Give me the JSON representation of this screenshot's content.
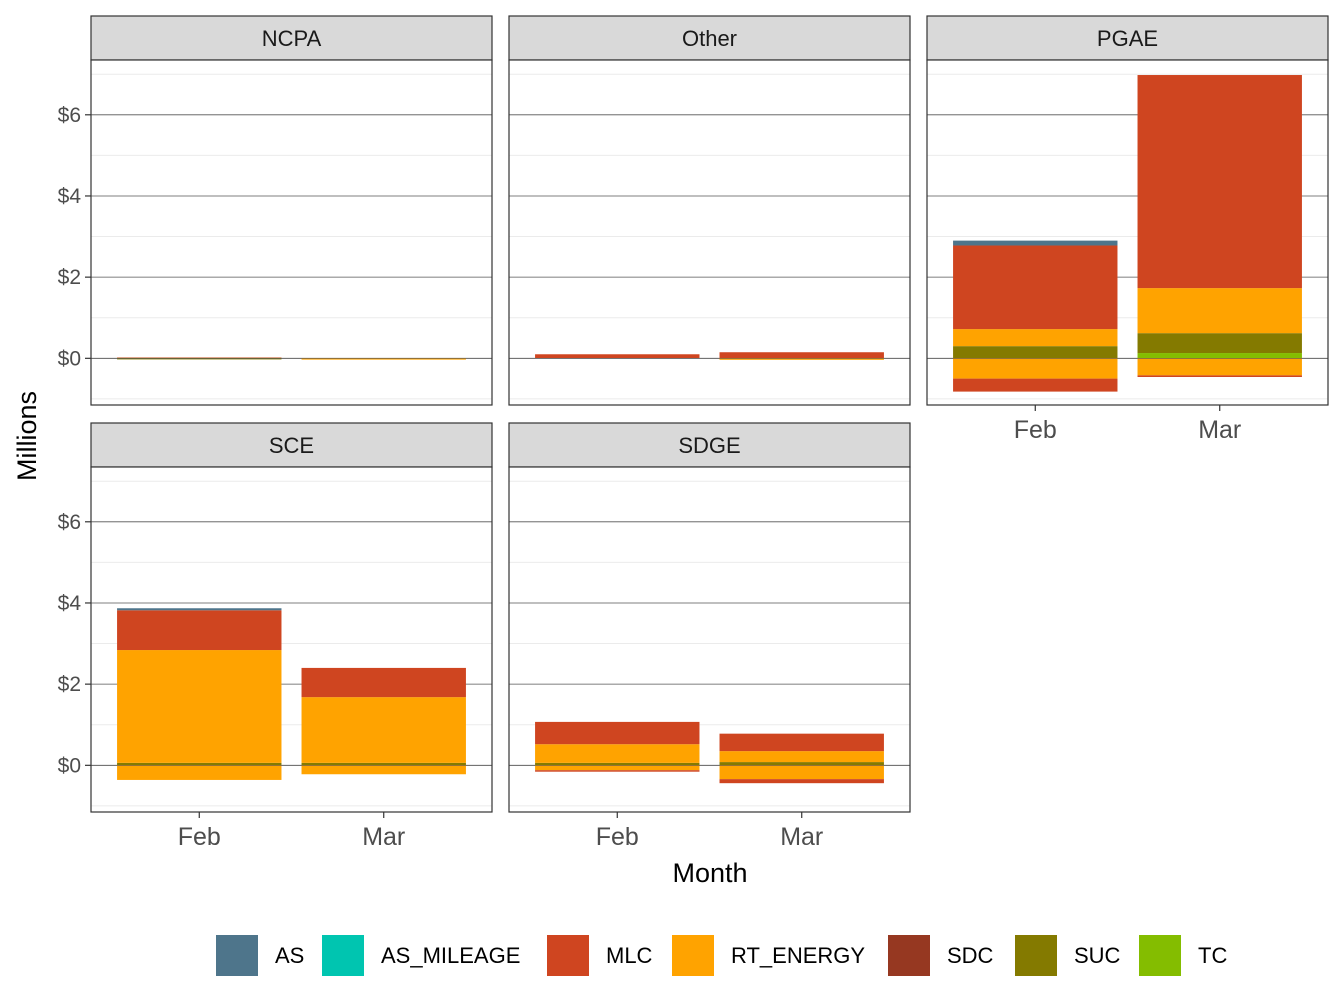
{
  "chart_data": {
    "type": "bar",
    "stacked": true,
    "xlabel": "Month",
    "ylabel": "Millions",
    "ylim": [
      -1.15,
      7.35
    ],
    "ytick_values": [
      0,
      2,
      4,
      6
    ],
    "ytick_labels": [
      "$0",
      "$2",
      "$4",
      "$6"
    ],
    "categories": [
      "Feb",
      "Mar"
    ],
    "grid": true,
    "legend_position": "bottom",
    "legend": [
      {
        "name": "AS",
        "color": "#4E758B"
      },
      {
        "name": "AS_MILEAGE",
        "color": "#00C5B0"
      },
      {
        "name": "MLC",
        "color": "#CF4520"
      },
      {
        "name": "RT_ENERGY",
        "color": "#FFA300"
      },
      {
        "name": "SDC",
        "color": "#963821"
      },
      {
        "name": "SUC",
        "color": "#847A00"
      },
      {
        "name": "TC",
        "color": "#84BD00"
      }
    ],
    "panels": [
      {
        "title": "NCPA",
        "bars": [
          {
            "category": "Feb",
            "segments": [
              {
                "series": "MLC",
                "from": 0,
                "to": 0.02
              },
              {
                "series": "SUC",
                "from": 0.0,
                "to": 0.01
              }
            ]
          },
          {
            "category": "Mar",
            "segments": [
              {
                "series": "RT_ENERGY",
                "from": -0.01,
                "to": 0.005
              }
            ]
          }
        ]
      },
      {
        "title": "Other",
        "bars": [
          {
            "category": "Feb",
            "segments": [
              {
                "series": "MLC",
                "from": 0,
                "to": 0.1
              }
            ]
          },
          {
            "category": "Mar",
            "segments": [
              {
                "series": "MLC",
                "from": 0.0,
                "to": 0.15
              },
              {
                "series": "RT_ENERGY",
                "from": -0.03,
                "to": 0.0
              }
            ]
          }
        ]
      },
      {
        "title": "PGAE",
        "bars": [
          {
            "category": "Feb",
            "segments": [
              {
                "series": "SUC",
                "from": 0,
                "to": 0.3
              },
              {
                "series": "RT_ENERGY",
                "from": 0.3,
                "to": 0.72
              },
              {
                "series": "MLC",
                "from": 0.72,
                "to": 2.78
              },
              {
                "series": "AS",
                "from": 2.78,
                "to": 2.9
              },
              {
                "series": "RT_ENERGY",
                "from": -0.5,
                "to": 0
              },
              {
                "series": "MLC",
                "from": -0.82,
                "to": -0.5
              }
            ]
          },
          {
            "category": "Mar",
            "segments": [
              {
                "series": "TC",
                "from": 0,
                "to": 0.13
              },
              {
                "series": "SUC",
                "from": 0.13,
                "to": 0.62
              },
              {
                "series": "RT_ENERGY",
                "from": 0.62,
                "to": 1.73
              },
              {
                "series": "MLC",
                "from": 1.73,
                "to": 6.98
              },
              {
                "series": "RT_ENERGY",
                "from": -0.42,
                "to": 0
              },
              {
                "series": "MLC",
                "from": -0.46,
                "to": -0.42
              }
            ]
          }
        ]
      },
      {
        "title": "SCE",
        "bars": [
          {
            "category": "Feb",
            "segments": [
              {
                "series": "SUC",
                "from": 0,
                "to": 0.06
              },
              {
                "series": "RT_ENERGY",
                "from": 0.06,
                "to": 2.84
              },
              {
                "series": "MLC",
                "from": 2.84,
                "to": 3.82
              },
              {
                "series": "AS",
                "from": 3.82,
                "to": 3.87
              },
              {
                "series": "RT_ENERGY",
                "from": -0.36,
                "to": 0
              }
            ]
          },
          {
            "category": "Mar",
            "segments": [
              {
                "series": "SUC",
                "from": 0,
                "to": 0.06
              },
              {
                "series": "RT_ENERGY",
                "from": 0.06,
                "to": 1.68
              },
              {
                "series": "MLC",
                "from": 1.68,
                "to": 2.4
              },
              {
                "series": "RT_ENERGY",
                "from": -0.22,
                "to": 0
              }
            ]
          }
        ]
      },
      {
        "title": "SDGE",
        "bars": [
          {
            "category": "Feb",
            "segments": [
              {
                "series": "SUC",
                "from": 0,
                "to": 0.06
              },
              {
                "series": "RT_ENERGY",
                "from": 0.06,
                "to": 0.52
              },
              {
                "series": "MLC",
                "from": 0.52,
                "to": 1.07
              },
              {
                "series": "RT_ENERGY",
                "from": -0.12,
                "to": 0
              },
              {
                "series": "MLC",
                "from": -0.14,
                "to": -0.12
              }
            ]
          },
          {
            "category": "Mar",
            "segments": [
              {
                "series": "SUC",
                "from": 0,
                "to": 0.08
              },
              {
                "series": "RT_ENERGY",
                "from": 0.08,
                "to": 0.35
              },
              {
                "series": "MLC",
                "from": 0.35,
                "to": 0.78
              },
              {
                "series": "RT_ENERGY",
                "from": -0.34,
                "to": 0
              },
              {
                "series": "MLC",
                "from": -0.44,
                "to": -0.34
              }
            ]
          }
        ]
      }
    ]
  }
}
